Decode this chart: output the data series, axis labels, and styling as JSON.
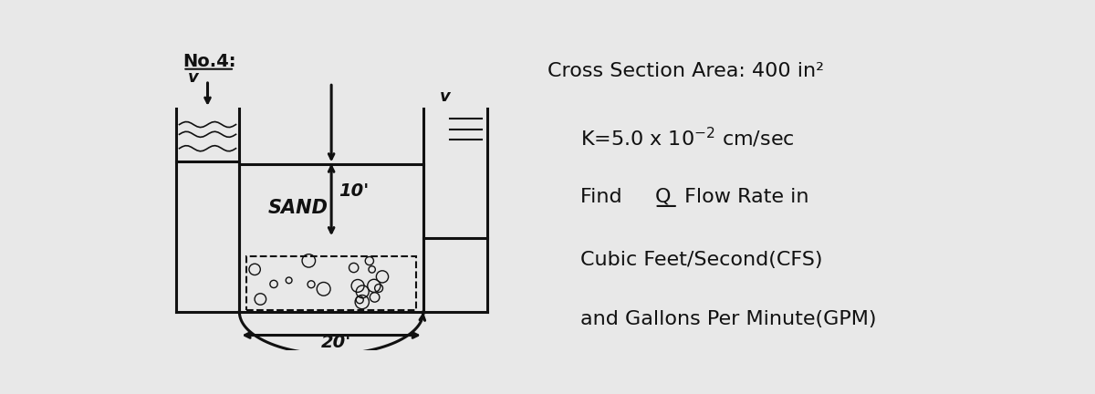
{
  "background_color": "#e8e8e8",
  "title": "No.4:",
  "line1": "Cross Section Area: 400 in²",
  "line4": "Cubic Feet/Second(CFS)",
  "line5": "and Gallons Per Minute(GPM)",
  "label_sand": "SAND",
  "label_10ft": "10'",
  "label_20ft": "20'",
  "text_color": "#111111",
  "sketch_color": "#111111"
}
